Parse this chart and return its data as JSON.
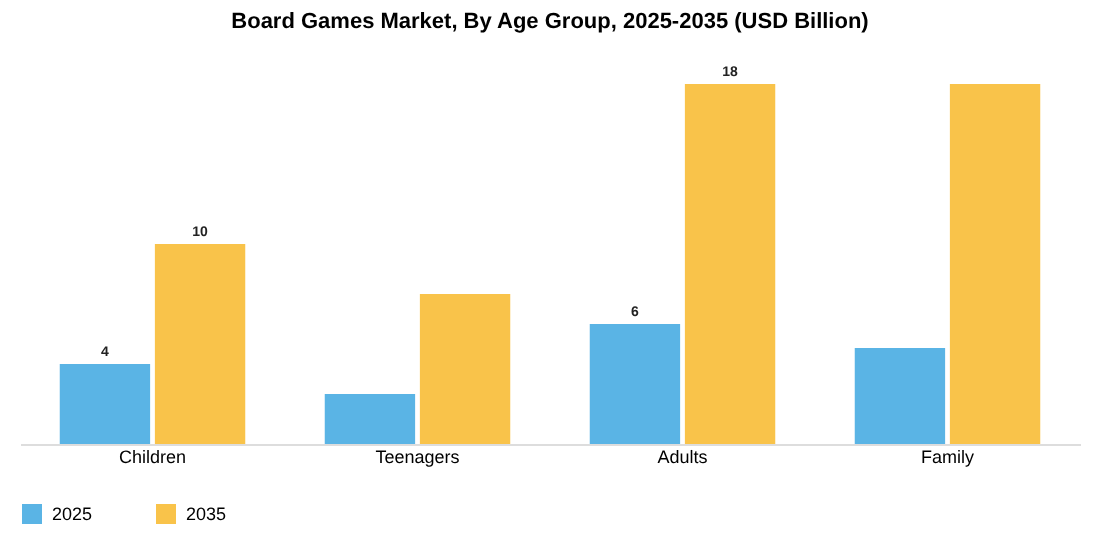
{
  "chart_data": {
    "type": "bar",
    "title": "Board Games Market, By Age Group, 2025-2035 (USD Billion)",
    "categories": [
      "Children",
      "Teenagers",
      "Adults",
      "Family"
    ],
    "series": [
      {
        "name": "2025",
        "color": "#5ab4e5",
        "values": [
          4,
          2.5,
          6,
          4.8
        ],
        "value_labels": [
          "4",
          null,
          "6",
          null
        ]
      },
      {
        "name": "2035",
        "color": "#f9c34a",
        "values": [
          10,
          7.5,
          18,
          18
        ],
        "value_labels": [
          "10",
          null,
          "18",
          null
        ]
      }
    ],
    "legend": "bottom",
    "grid": false
  }
}
